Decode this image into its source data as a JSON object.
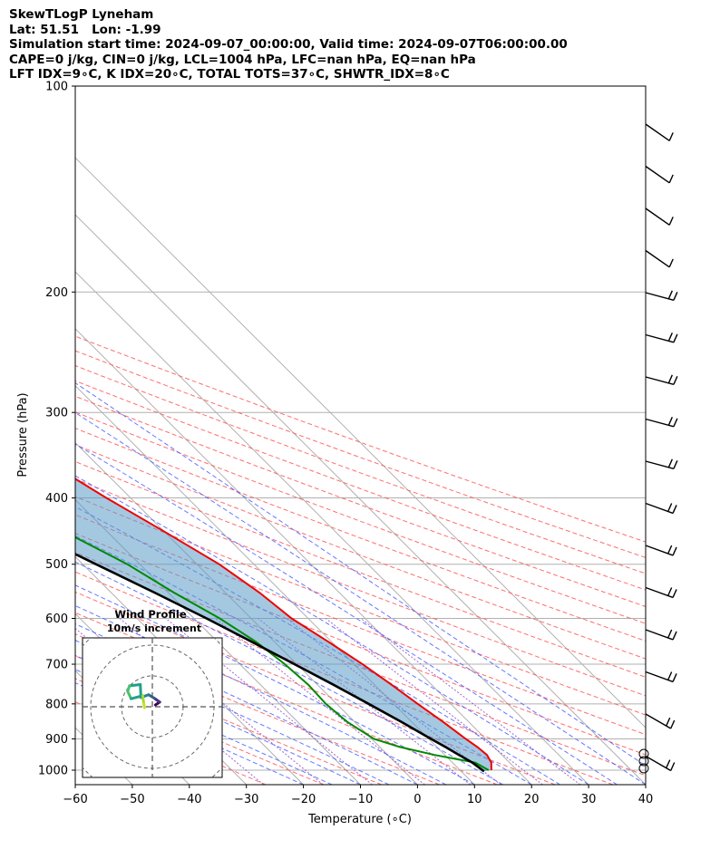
{
  "header": {
    "title": "SkewTLogP Lyneham",
    "location": "Lat: 51.51   Lon: -1.99",
    "times": "Simulation start time: 2024-09-07_00:00:00, Valid time: 2024-09-07T06:00:00.00",
    "cape_line": "CAPE=0 j/kg, CIN=0 j/kg, LCL=1004 hPa, LFC=nan hPa, EQ=nan hPa",
    "index_line": "LFT IDX=9∘C, K IDX=20∘C, TOTAL TOTS=37∘C, SHWTR_IDX=8∘C"
  },
  "chart_data": {
    "type": "line",
    "subtype": "skew-T log-P",
    "xlabel": "Temperature (∘C)",
    "ylabel": "Pressure (hPa)",
    "xlim": [
      -60,
      40
    ],
    "ylim": [
      1050,
      100
    ],
    "x_ticks": [
      -60,
      -50,
      -40,
      -30,
      -20,
      -10,
      0,
      10,
      20,
      30,
      40
    ],
    "y_ticks": [
      100,
      200,
      300,
      400,
      500,
      600,
      700,
      800,
      900,
      1000
    ],
    "grid": true,
    "series": [
      {
        "role": "temperature",
        "color": "#ee0000",
        "pressure": [
          1000,
          975,
          950,
          925,
          900,
          850,
          800,
          750,
          700,
          650,
          600,
          550,
          500,
          450,
          400,
          350,
          300,
          275,
          250,
          225,
          215,
          205,
          185,
          165,
          150,
          140,
          125,
          110,
          100
        ],
        "values": [
          15.5,
          16.8,
          17.4,
          17.1,
          16.5,
          15.5,
          14.2,
          13.0,
          11.5,
          9.5,
          7.1,
          6.0,
          3.9,
          0.2,
          -4.2,
          -8.6,
          -15.3,
          -18.4,
          -22.5,
          -21.4,
          -24.8,
          -27.4,
          -27.2,
          -25.6,
          -26.2,
          -26.4,
          -27.3,
          -28.3,
          -28.3
        ]
      },
      {
        "role": "dewpoint",
        "color": "#008800",
        "pressure": [
          1000,
          975,
          950,
          925,
          900,
          850,
          800,
          750,
          700,
          650,
          600,
          550,
          500,
          450,
          400,
          350,
          300,
          275,
          250,
          225,
          200,
          185,
          165,
          150,
          125,
          100
        ],
        "values": [
          15.0,
          14.0,
          8.2,
          3.5,
          0.4,
          -1.3,
          -1.9,
          -1.6,
          -2.1,
          -3.2,
          -5.5,
          -9.0,
          -12.2,
          -17.3,
          -20.8,
          -23.7,
          -29.2,
          -32.3,
          -37.4,
          -39.8,
          -40.9,
          -43.7,
          -55.8,
          -57.3,
          -57.4,
          -57.1
        ]
      },
      {
        "role": "parcel",
        "color": "#000000",
        "pressure": [
          1004,
          975,
          950,
          925,
          900,
          850,
          800,
          750,
          700,
          650,
          600,
          550,
          500,
          450,
          400,
          350,
          300,
          250,
          200,
          150,
          100
        ],
        "values": [
          14.0,
          13.5,
          12.5,
          11.5,
          10.4,
          8.2,
          5.6,
          2.8,
          -0.4,
          -3.9,
          -7.8,
          -12.4,
          -17.7,
          -23.4,
          -30.6,
          -38.5,
          -47.8,
          -58.6,
          -71.8,
          -88.1,
          -110.0
        ]
      }
    ],
    "barbs": [
      {
        "pressure": 150,
        "label": ""
      },
      {
        "pressure": 200,
        "label": ""
      },
      {
        "pressure": 300,
        "label": ""
      },
      {
        "pressure": 500,
        "label": ""
      },
      {
        "pressure": 700,
        "label": ""
      },
      {
        "pressure": 850,
        "label": ""
      }
    ],
    "hodograph": {
      "title": "Wind Profile",
      "subtitle": "10m/s increment",
      "u": [
        1.0,
        2.4,
        0.6,
        -1.2,
        -3.7,
        -3.9,
        -7.4,
        -8.0,
        -6.9,
        -3.1,
        -2.8,
        -2.5
      ],
      "v": [
        0.6,
        1.5,
        2.8,
        3.9,
        3.0,
        7.2,
        6.8,
        5.0,
        2.6,
        3.6,
        1.1,
        -0.3
      ]
    }
  }
}
